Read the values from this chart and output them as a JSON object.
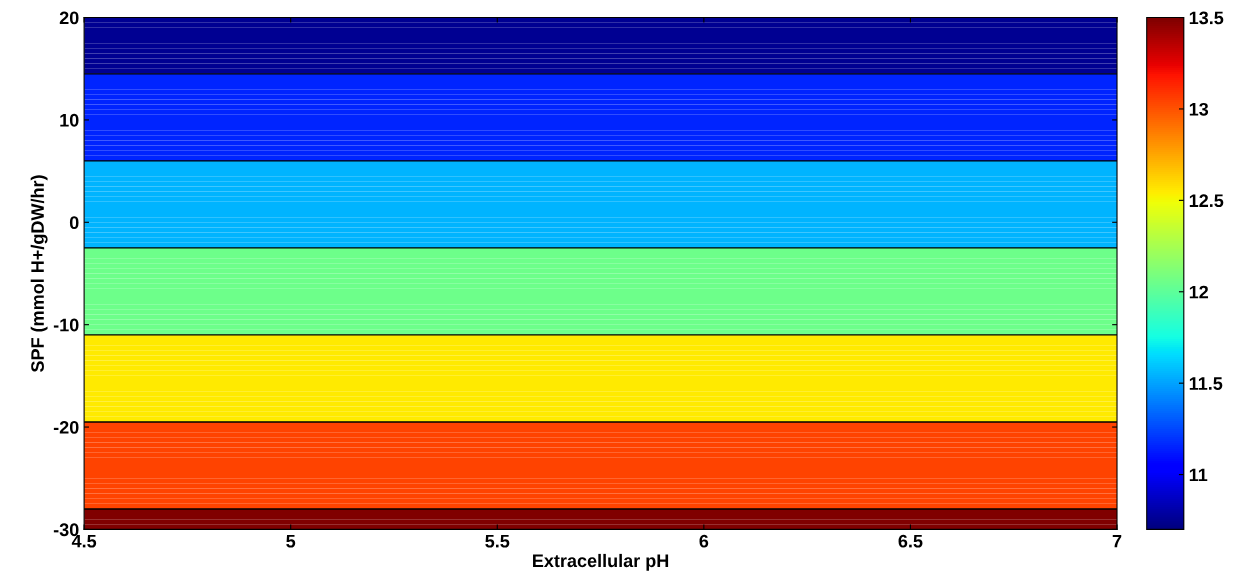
{
  "chart_data": {
    "type": "heatmap",
    "xlabel": "Extracellular pH",
    "ylabel": "SPF (mmol H+/gDW/hr)",
    "xlim": [
      4.5,
      7
    ],
    "xticks": [
      4.5,
      5,
      5.5,
      6,
      6.5,
      7
    ],
    "ylim": [
      -30,
      20
    ],
    "yticks": [
      -30,
      -20,
      -10,
      0,
      10,
      20
    ],
    "ref_lines": [
      {
        "axis": "y",
        "value": 14.5,
        "color": "#000000"
      },
      {
        "axis": "y",
        "value": 6,
        "color": "#000000"
      },
      {
        "axis": "y",
        "value": -2.5,
        "color": "#000000"
      },
      {
        "axis": "y",
        "value": -11,
        "color": "#000000"
      },
      {
        "axis": "y",
        "value": -19.5,
        "color": "#000000"
      },
      {
        "axis": "y",
        "value": -28,
        "color": "#000000"
      }
    ],
    "cells": [
      [
        10.75
      ],
      [
        10.75
      ],
      [
        10.75
      ],
      [
        10.75
      ],
      [
        10.75
      ],
      [
        10.75
      ],
      [
        10.75
      ],
      [
        10.75
      ],
      [
        10.75
      ],
      [
        10.75
      ],
      [
        10.75
      ],
      [
        11.15
      ],
      [
        11.15
      ],
      [
        11.15
      ],
      [
        11.15
      ],
      [
        11.15
      ],
      [
        11.15
      ],
      [
        11.15
      ],
      [
        11.15
      ],
      [
        11.15
      ],
      [
        11.15
      ],
      [
        11.15
      ],
      [
        11.15
      ],
      [
        11.15
      ],
      [
        11.15
      ],
      [
        11.15
      ],
      [
        11.15
      ],
      [
        11.15
      ],
      [
        11.55
      ],
      [
        11.55
      ],
      [
        11.55
      ],
      [
        11.55
      ],
      [
        11.55
      ],
      [
        11.55
      ],
      [
        11.55
      ],
      [
        11.55
      ],
      [
        11.55
      ],
      [
        11.55
      ],
      [
        11.55
      ],
      [
        11.55
      ],
      [
        11.55
      ],
      [
        11.55
      ],
      [
        11.55
      ],
      [
        11.55
      ],
      [
        11.55
      ],
      [
        12.05
      ],
      [
        12.05
      ],
      [
        12.05
      ],
      [
        12.05
      ],
      [
        12.05
      ],
      [
        12.05
      ],
      [
        12.05
      ],
      [
        12.05
      ],
      [
        12.05
      ],
      [
        12.05
      ],
      [
        12.05
      ],
      [
        12.05
      ],
      [
        12.05
      ],
      [
        12.05
      ],
      [
        12.05
      ],
      [
        12.05
      ],
      [
        12.05
      ],
      [
        12.55
      ],
      [
        12.55
      ],
      [
        12.55
      ],
      [
        12.55
      ],
      [
        12.55
      ],
      [
        12.55
      ],
      [
        12.55
      ],
      [
        12.55
      ],
      [
        12.55
      ],
      [
        12.55
      ],
      [
        12.55
      ],
      [
        12.55
      ],
      [
        12.55
      ],
      [
        12.55
      ],
      [
        12.55
      ],
      [
        12.55
      ],
      [
        12.55
      ],
      [
        13.05
      ],
      [
        13.05
      ],
      [
        13.05
      ],
      [
        13.05
      ],
      [
        13.05
      ],
      [
        13.05
      ],
      [
        13.05
      ],
      [
        13.05
      ],
      [
        13.05
      ],
      [
        13.05
      ],
      [
        13.05
      ],
      [
        13.05
      ],
      [
        13.05
      ],
      [
        13.05
      ],
      [
        13.05
      ],
      [
        13.05
      ],
      [
        13.05
      ],
      [
        13.5
      ],
      [
        13.5
      ],
      [
        13.5
      ],
      [
        13.5
      ]
    ],
    "clim": [
      10.7,
      13.5
    ],
    "cticks": [
      11,
      11.5,
      12,
      12.5,
      13,
      13.5
    ],
    "grid": false
  }
}
